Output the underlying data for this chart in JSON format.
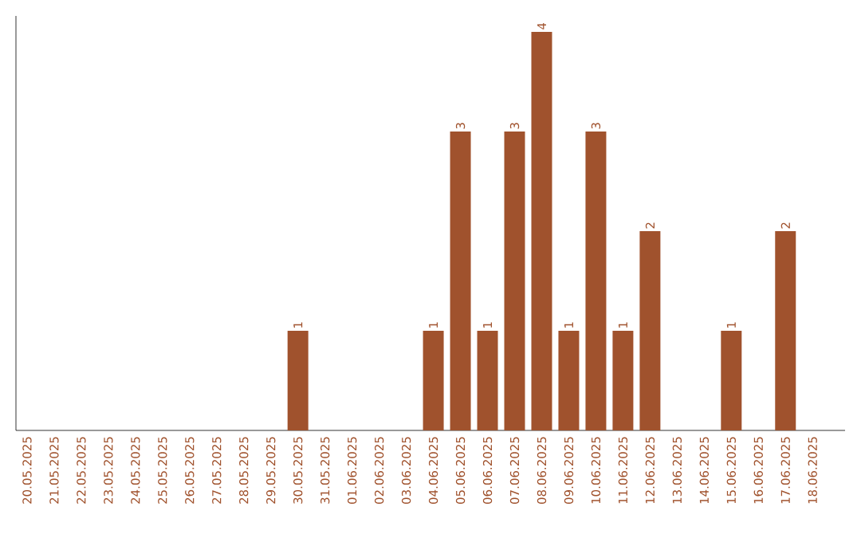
{
  "chart_data": {
    "type": "bar",
    "categories": [
      "20.05.2025",
      "21.05.2025",
      "22.05.2025",
      "23.05.2025",
      "24.05.2025",
      "25.05.2025",
      "26.05.2025",
      "27.05.2025",
      "28.05.2025",
      "29.05.2025",
      "30.05.2025",
      "31.05.2025",
      "01.06.2025",
      "02.06.2025",
      "03.06.2025",
      "04.06.2025",
      "05.06.2025",
      "06.06.2025",
      "07.06.2025",
      "08.06.2025",
      "09.06.2025",
      "10.06.2025",
      "11.06.2025",
      "12.06.2025",
      "13.06.2025",
      "14.06.2025",
      "15.06.2025",
      "16.06.2025",
      "17.06.2025",
      "18.06.2025"
    ],
    "values": [
      0,
      0,
      0,
      0,
      0,
      0,
      0,
      0,
      0,
      0,
      1,
      0,
      0,
      0,
      0,
      1,
      3,
      1,
      3,
      4,
      1,
      3,
      1,
      2,
      0,
      0,
      1,
      0,
      2,
      0
    ],
    "value_labels": [
      null,
      null,
      null,
      null,
      null,
      null,
      null,
      null,
      null,
      null,
      "1",
      null,
      null,
      null,
      null,
      "1",
      "3",
      "1",
      "3",
      "4",
      "1",
      "3",
      "1",
      "2",
      null,
      null,
      "1",
      null,
      "2",
      null
    ],
    "color": "#a0522d",
    "tick_labels": "x"
  }
}
